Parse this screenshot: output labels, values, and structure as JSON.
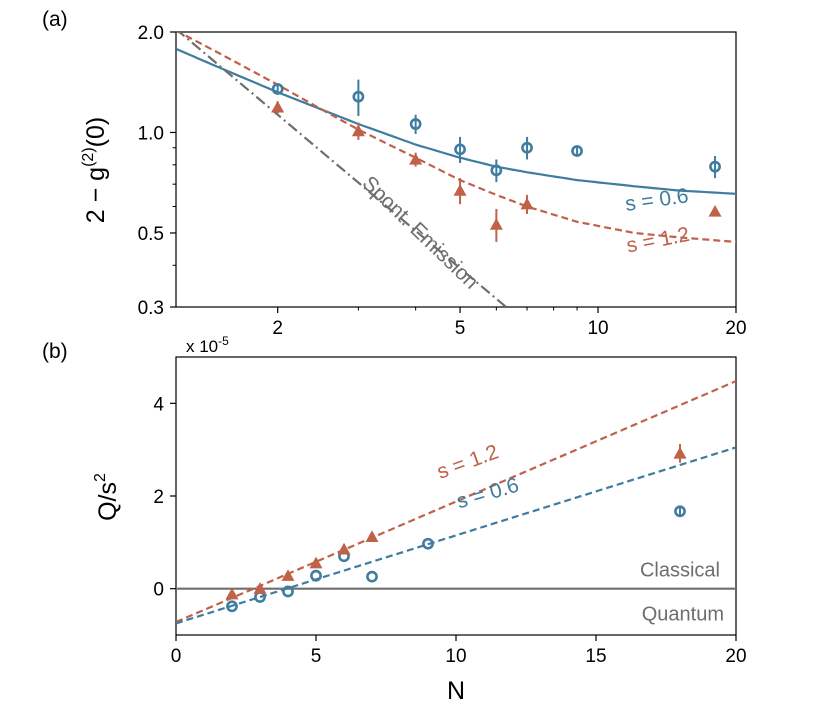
{
  "colors": {
    "blue": "#3f7ca0",
    "red": "#c0614a",
    "gray": "#6e6e6e",
    "axis": "#000000"
  },
  "chart_data": [
    {
      "type": "scatter",
      "panel_label": "(a)",
      "xscale": "log",
      "yscale": "log",
      "xlim": [
        1.2,
        20
      ],
      "ylim": [
        0.3,
        2.0
      ],
      "ylabel": "2 − g",
      "ylabel_sup": "(2)",
      "ylabel_tail": "(0)",
      "xticks": [
        {
          "v": 2,
          "label": "2"
        },
        {
          "v": 5,
          "label": "5"
        },
        {
          "v": 10,
          "label": "10"
        },
        {
          "v": 20,
          "label": "20"
        }
      ],
      "yticks": [
        {
          "v": 0.3,
          "label": "0.3"
        },
        {
          "v": 0.5,
          "label": "0.5"
        },
        {
          "v": 1.0,
          "label": "1.0"
        },
        {
          "v": 2.0,
          "label": "2.0"
        }
      ],
      "series": [
        {
          "name": "s = 0.6 data",
          "kind": "points",
          "marker": "circle",
          "color": "blue",
          "points": [
            {
              "x": 2,
              "y": 1.35,
              "err": 0.04
            },
            {
              "x": 3,
              "y": 1.28,
              "err": 0.16
            },
            {
              "x": 4,
              "y": 1.06,
              "err": 0.07
            },
            {
              "x": 5,
              "y": 0.89,
              "err": 0.08
            },
            {
              "x": 6,
              "y": 0.77,
              "err": 0.06
            },
            {
              "x": 7,
              "y": 0.9,
              "err": 0.07
            },
            {
              "x": 9,
              "y": 0.88,
              "err": 0.03
            },
            {
              "x": 18,
              "y": 0.79,
              "err": 0.06
            }
          ]
        },
        {
          "name": "s = 1.2 data",
          "kind": "points",
          "marker": "triangle",
          "color": "red",
          "points": [
            {
              "x": 2,
              "y": 1.19,
              "err": 0.05
            },
            {
              "x": 3,
              "y": 1.01,
              "err": 0.06
            },
            {
              "x": 4,
              "y": 0.83,
              "err": 0.04
            },
            {
              "x": 5,
              "y": 0.67,
              "err": 0.06
            },
            {
              "x": 6,
              "y": 0.53,
              "err": 0.06
            },
            {
              "x": 7,
              "y": 0.61,
              "err": 0.04
            },
            {
              "x": 18,
              "y": 0.58,
              "err": 0.02
            }
          ]
        },
        {
          "name": "s = 0.6",
          "kind": "line",
          "dash": "solid",
          "color": "blue",
          "x": [
            1.2,
            1.5,
            2,
            2.5,
            3,
            4,
            5,
            6,
            7,
            9,
            12,
            15,
            20
          ],
          "y": [
            1.78,
            1.56,
            1.32,
            1.17,
            1.06,
            0.92,
            0.84,
            0.79,
            0.76,
            0.72,
            0.69,
            0.67,
            0.655
          ]
        },
        {
          "name": "s = 1.2",
          "kind": "line",
          "dash": "dashed",
          "color": "red",
          "x": [
            1.2,
            1.5,
            2,
            2.5,
            3,
            4,
            5,
            6,
            7,
            9,
            12,
            15,
            20
          ],
          "y": [
            2.02,
            1.72,
            1.39,
            1.17,
            1.02,
            0.84,
            0.72,
            0.65,
            0.6,
            0.54,
            0.5,
            0.485,
            0.47
          ]
        },
        {
          "name": "Spont. Emission",
          "kind": "line",
          "dash": "dashdot",
          "color": "gray",
          "x": [
            1.2,
            6.3
          ],
          "y": [
            2.04,
            0.3
          ]
        }
      ],
      "annotations": [
        {
          "text": "s = 0.6",
          "color": "blue",
          "x": 13.5,
          "y": 0.6,
          "angle": -8
        },
        {
          "text": "s = 1.2",
          "color": "red",
          "x": 13.6,
          "y": 0.455,
          "angle": -11
        },
        {
          "text": "Spont. Emission",
          "color": "gray",
          "x": 4.0,
          "y": 0.485,
          "angle": 44
        }
      ]
    },
    {
      "type": "scatter",
      "panel_label": "(b)",
      "xlabel": "N",
      "ylabel": "Q/s",
      "ylabel_sup": "2",
      "scale_note": "x 10",
      "scale_note_exp": "-5",
      "xlim": [
        0,
        20
      ],
      "ylim": [
        -1.0,
        5.0
      ],
      "xticks": [
        0,
        5,
        10,
        15,
        20
      ],
      "yticks": [
        0,
        2,
        4
      ],
      "series": [
        {
          "name": "s = 0.6 data",
          "kind": "points",
          "marker": "circle",
          "color": "blue",
          "points": [
            {
              "x": 2,
              "y": -0.38
            },
            {
              "x": 3,
              "y": -0.18
            },
            {
              "x": 4,
              "y": -0.06
            },
            {
              "x": 5,
              "y": 0.28
            },
            {
              "x": 6,
              "y": 0.7
            },
            {
              "x": 7,
              "y": 0.26
            },
            {
              "x": 9,
              "y": 0.97
            },
            {
              "x": 18,
              "y": 1.67,
              "err": 0.1
            }
          ]
        },
        {
          "name": "s = 1.2 data",
          "kind": "points",
          "marker": "triangle",
          "color": "red",
          "points": [
            {
              "x": 2,
              "y": -0.12
            },
            {
              "x": 3,
              "y": 0.0
            },
            {
              "x": 4,
              "y": 0.28
            },
            {
              "x": 5,
              "y": 0.55
            },
            {
              "x": 6,
              "y": 0.85
            },
            {
              "x": 7,
              "y": 1.12
            },
            {
              "x": 18,
              "y": 2.92,
              "err": 0.2
            }
          ]
        },
        {
          "name": "s = 1.2",
          "kind": "line",
          "dash": "dashed",
          "color": "red",
          "x": [
            0,
            20
          ],
          "y": [
            -0.72,
            4.48
          ]
        },
        {
          "name": "s = 0.6",
          "kind": "line",
          "dash": "dashed",
          "color": "blue",
          "x": [
            0,
            20
          ],
          "y": [
            -0.75,
            3.05
          ]
        }
      ],
      "reference_line": {
        "y": 0,
        "color": "gray",
        "label_above": "Classical",
        "label_below": "Quantum"
      },
      "annotations": [
        {
          "text": "s = 1.2",
          "color": "red",
          "x": 10.5,
          "y": 2.6,
          "angle": -20
        },
        {
          "text": "s = 0.6",
          "color": "blue",
          "x": 11.2,
          "y": 1.92,
          "angle": -16
        }
      ]
    }
  ]
}
